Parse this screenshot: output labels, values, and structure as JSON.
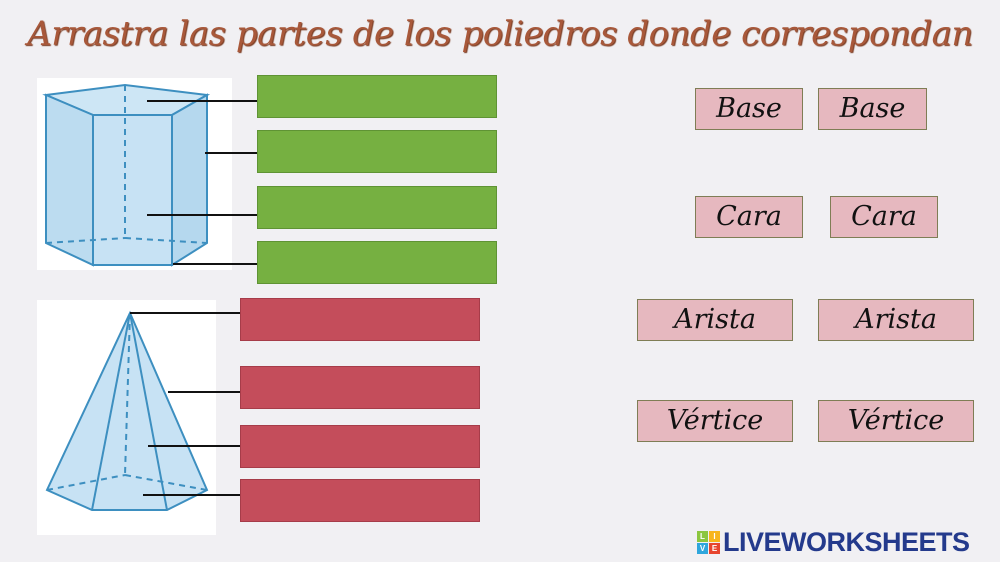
{
  "title": "Arrastra las partes de los poliedros donde correspondan",
  "colors": {
    "prism_drop": "#76b041",
    "pyramid_drop": "#c44d5b",
    "tag": "#e6b8bf",
    "title": "#a8583a"
  },
  "figures": {
    "prism": "pentagonal-prism-image",
    "pyramid": "pentagonal-pyramid-image"
  },
  "tags": [
    "Base",
    "Base",
    "Cara",
    "Cara",
    "Arista",
    "Arista",
    "Vértice",
    "Vértice"
  ],
  "logo": {
    "text": "LIVEWORKSHEETS",
    "cube": [
      "L",
      "I",
      "V",
      "E"
    ]
  }
}
